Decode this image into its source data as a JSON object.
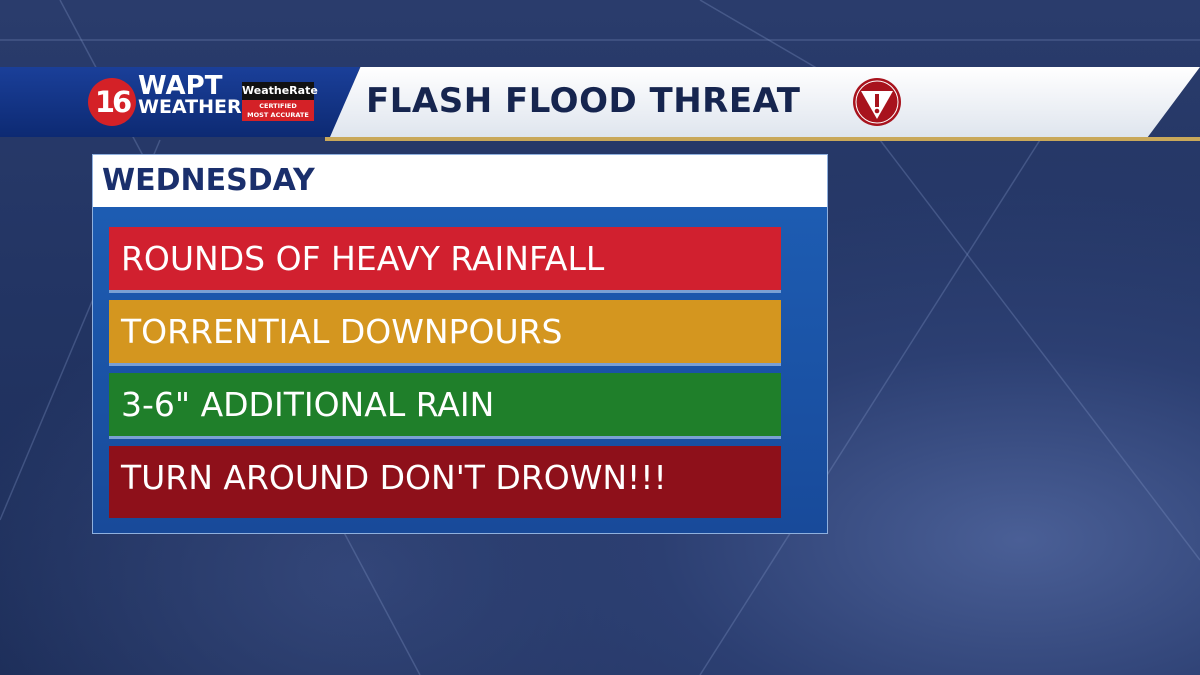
{
  "header": {
    "station_number": "16",
    "station_name": "WAPT",
    "station_sub": "WEATHER",
    "badge_top": "WeatheRate",
    "badge_bottom_1": "CERTIFIED",
    "badge_bottom_2": "MOST ACCURATE",
    "title": "FLASH FLOOD THREAT",
    "alert_icon": "warning-triangle-exclamation"
  },
  "panel": {
    "day": "WEDNESDAY",
    "items": [
      {
        "text": "ROUNDS OF HEAVY RAINFALL",
        "color": "#d1202f"
      },
      {
        "text": "TORRENTIAL DOWNPOURS",
        "color": "#d4961f"
      },
      {
        "text": "3-6\" ADDITIONAL RAIN",
        "color": "#1f7f2a"
      },
      {
        "text": "TURN AROUND DON'T DROWN!!!",
        "color": "#8e101a"
      }
    ]
  }
}
